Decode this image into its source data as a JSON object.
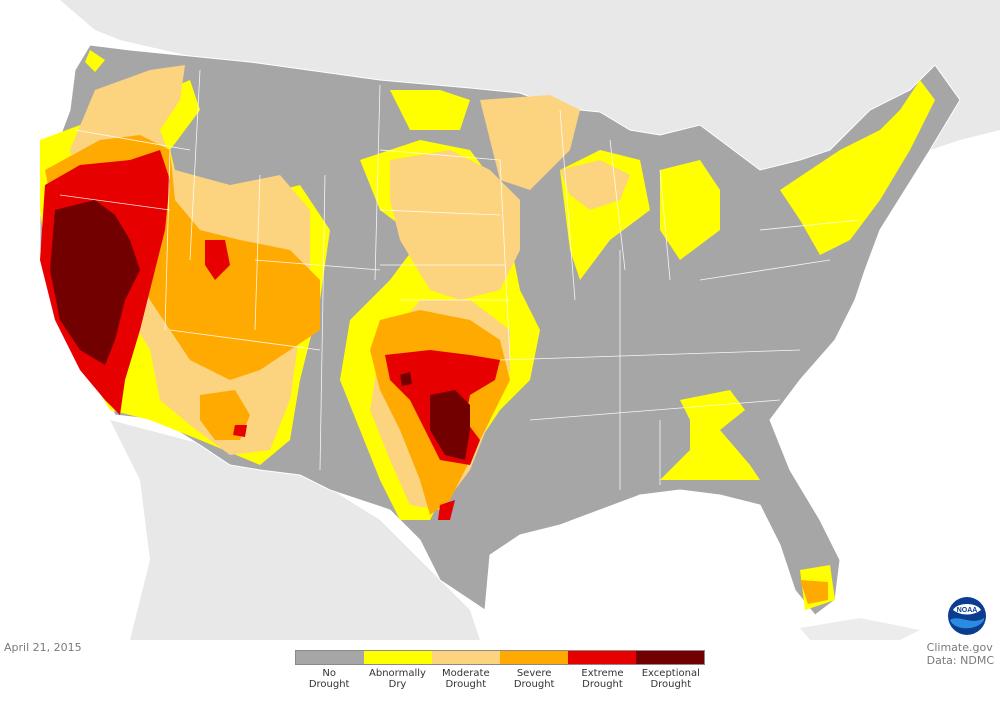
{
  "date_label": "April 21, 2015",
  "credit": {
    "site": "Climate.gov",
    "data": "Data: NDMC"
  },
  "logo": {
    "text": "NOAA"
  },
  "legend": [
    {
      "line1": "No",
      "line2": "Drought",
      "color": "#a6a6a6"
    },
    {
      "line1": "Abnormally",
      "line2": "Dry",
      "color": "#ffff00"
    },
    {
      "line1": "Moderate",
      "line2": "Drought",
      "color": "#fcd37f"
    },
    {
      "line1": "Severe",
      "line2": "Drought",
      "color": "#ffaa00"
    },
    {
      "line1": "Extreme",
      "line2": "Drought",
      "color": "#e60000"
    },
    {
      "line1": "Exceptional",
      "line2": "Drought",
      "color": "#730000"
    }
  ],
  "colors": {
    "background_land": "#e6e6e6",
    "water": "#ffffff"
  }
}
